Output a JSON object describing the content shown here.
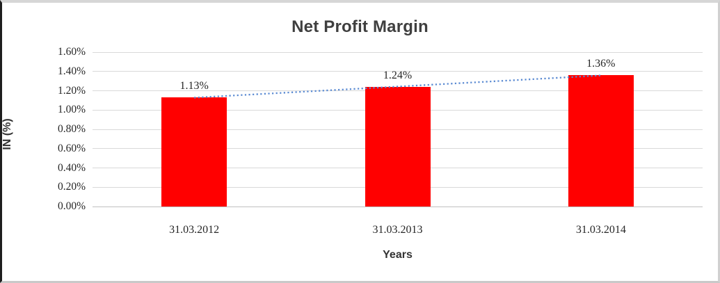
{
  "chart": {
    "title": "Net Profit Margin",
    "y_axis_title": "IN (%)",
    "x_axis_title": "Years"
  },
  "chart_data": {
    "type": "bar",
    "title": "Net Profit Margin",
    "categories": [
      "31.03.2012",
      "31.03.2013",
      "31.03.2014"
    ],
    "values": [
      1.13,
      1.24,
      1.36
    ],
    "data_labels": [
      "1.13%",
      "1.24%",
      "1.36%"
    ],
    "xlabel": "Years",
    "ylabel": "IN (%)",
    "ylim": [
      0,
      1.6
    ],
    "ytick_step": 0.2,
    "ytick_labels": [
      "0.00%",
      "0.20%",
      "0.40%",
      "0.60%",
      "0.80%",
      "1.00%",
      "1.20%",
      "1.40%",
      "1.60%"
    ],
    "grid": true,
    "legend": "none",
    "bar_color": "#FF0000",
    "gridline_color": "#D9D9D9",
    "axis_line_color": "#BFBFBF",
    "label_color": "#262626",
    "title_color": "#3F3F3F",
    "trendline": {
      "kind": "linear",
      "style": "dotted",
      "color": "#5A8AD2",
      "spans": "first-to-last-category-center"
    }
  }
}
